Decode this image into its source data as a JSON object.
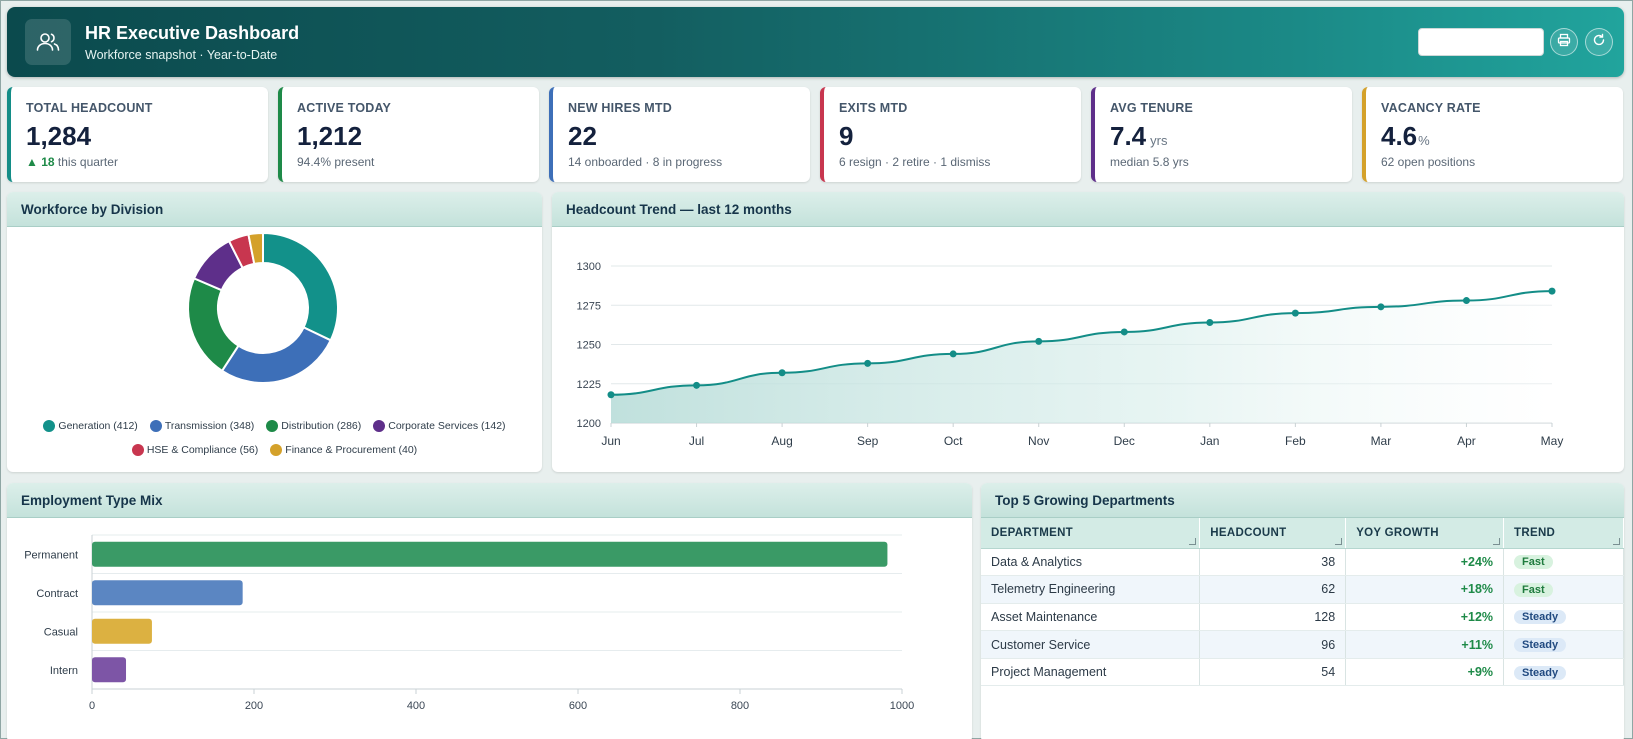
{
  "header": {
    "title": "HR Executive Dashboard",
    "subtitle": "Workforce snapshot · Year-to-Date",
    "search_value": "",
    "icons": [
      "users-icon",
      "print-icon",
      "refresh-icon"
    ]
  },
  "kpis": [
    {
      "label": "TOTAL HEADCOUNT",
      "value": "1,284",
      "unit": "",
      "sub_up": "▲ 18",
      "sub": "this quarter",
      "color": "#138d87"
    },
    {
      "label": "ACTIVE TODAY",
      "value": "1,212",
      "unit": "",
      "sub_up": "",
      "sub": "94.4% present",
      "color": "#1e8a48"
    },
    {
      "label": "NEW HIRES MTD",
      "value": "22",
      "unit": "",
      "sub_up": "",
      "sub": "14 onboarded · 8 in progress",
      "color": "#3d6fb8"
    },
    {
      "label": "EXITS MTD",
      "value": "9",
      "unit": "",
      "sub_up": "",
      "sub": "6 resign · 2 retire · 1 dismiss",
      "color": "#c8364f"
    },
    {
      "label": "AVG TENURE",
      "value": "7.4",
      "unit": "yrs",
      "sub_up": "",
      "sub": "median 5.8 yrs",
      "color": "#5e2f8a"
    },
    {
      "label": "VACANCY RATE",
      "value": "4.6",
      "unit": "%",
      "sub_up": "",
      "sub": "62 open positions",
      "color": "#d4a12a"
    }
  ],
  "panels": {
    "division_title": "Workforce by Division",
    "trend_title": "Headcount Trend — last 12 months",
    "employment_title": "Employment Type Mix",
    "departments_title": "Top 5 Growing Departments"
  },
  "chart_data": [
    {
      "type": "pie",
      "title": "Workforce by Division",
      "donut": true,
      "legend_position": "bottom",
      "categories": [
        "Generation",
        "Transmission",
        "Distribution",
        "Corporate Services",
        "HSE & Compliance",
        "Finance & Procurement"
      ],
      "legend_labels": [
        "Generation (412)",
        "Transmission (348)",
        "Distribution (286)",
        "Corporate Services (142)",
        "HSE & Compliance (56)",
        "Finance & Procurement (40)"
      ],
      "values": [
        412,
        348,
        286,
        142,
        56,
        40
      ],
      "colors": [
        "#12918a",
        "#3d6fb8",
        "#1e8a48",
        "#5e2f8a",
        "#c8364f",
        "#d4a12a"
      ]
    },
    {
      "type": "line",
      "title": "Headcount Trend — last 12 months",
      "x": [
        "Jun",
        "Jul",
        "Aug",
        "Sep",
        "Oct",
        "Nov",
        "Dec",
        "Jan",
        "Feb",
        "Mar",
        "Apr",
        "May"
      ],
      "series": [
        {
          "values": [
            1218,
            1224,
            1232,
            1238,
            1244,
            1252,
            1258,
            1264,
            1270,
            1274,
            1278,
            1284
          ]
        }
      ],
      "ylim": [
        1200,
        1300
      ],
      "yticks": [
        1200,
        1225,
        1250,
        1275,
        1300
      ],
      "grid": true,
      "area_fill": true,
      "color": "#138d87"
    },
    {
      "type": "bar",
      "orientation": "horizontal",
      "title": "Employment Type Mix",
      "categories": [
        "Permanent",
        "Contract",
        "Casual",
        "Intern"
      ],
      "values": [
        982,
        186,
        74,
        42
      ],
      "colors": [
        "#3a9a66",
        "#5b86c2",
        "#dcb141",
        "#7d55a6"
      ],
      "xlim": [
        0,
        1000
      ],
      "xticks": [
        0,
        200,
        400,
        600,
        800,
        1000
      ],
      "grid": true
    }
  ],
  "departments_table": {
    "columns": [
      "DEPARTMENT",
      "HEADCOUNT",
      "YOY GROWTH",
      "TREND"
    ],
    "rows": [
      {
        "department": "Data & Analytics",
        "headcount": "38",
        "growth": "+24%",
        "trend": "Fast"
      },
      {
        "department": "Telemetry Engineering",
        "headcount": "62",
        "growth": "+18%",
        "trend": "Fast"
      },
      {
        "department": "Asset Maintenance",
        "headcount": "128",
        "growth": "+12%",
        "trend": "Steady"
      },
      {
        "department": "Customer Service",
        "headcount": "96",
        "growth": "+11%",
        "trend": "Steady"
      },
      {
        "department": "Project Management",
        "headcount": "54",
        "growth": "+9%",
        "trend": "Steady"
      }
    ]
  }
}
